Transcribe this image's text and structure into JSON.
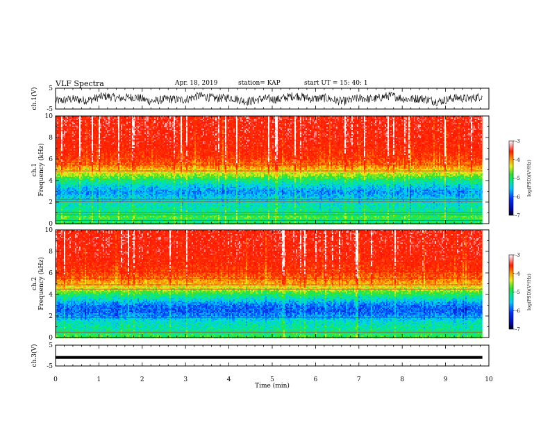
{
  "header": {
    "title": "VLF Spectra",
    "date": "Apr. 18, 2019",
    "station": "station= KAP",
    "start": "start  UT =  15: 40: 1"
  },
  "chart_data": [
    {
      "type": "line",
      "ylabel": "ch.1(V)",
      "ylim": [
        -5,
        5
      ],
      "yticks": [
        "-5",
        "5"
      ],
      "xlim": [
        0,
        10
      ],
      "signal": "dense noisy waveform, amplitude about ±3 V around 0"
    },
    {
      "type": "heatmap",
      "ylabel": "Frequency (kHz)",
      "channel_label": "ch.1",
      "xlim": [
        0,
        10
      ],
      "ylim": [
        0,
        10
      ],
      "yticks": [
        "0",
        "2",
        "4",
        "6",
        "8",
        "10"
      ],
      "data_end_min": 9.85,
      "colorbar": {
        "label": "log(PSD)(V²/Hz)",
        "ticks": [
          "-3",
          "-4",
          "-5",
          "-6",
          "-7"
        ],
        "range": [
          -7,
          -3
        ]
      },
      "profile": [
        {
          "f": 0.0,
          "v": -5.1
        },
        {
          "f": 0.3,
          "v": -5.3
        },
        {
          "f": 0.6,
          "v": -5.0
        },
        {
          "f": 1.0,
          "v": -5.3
        },
        {
          "f": 1.5,
          "v": -5.4
        },
        {
          "f": 2.0,
          "v": -5.5
        },
        {
          "f": 2.5,
          "v": -5.7
        },
        {
          "f": 3.0,
          "v": -5.9
        },
        {
          "f": 3.5,
          "v": -5.6
        },
        {
          "f": 4.0,
          "v": -5.3
        },
        {
          "f": 4.5,
          "v": -4.8
        },
        {
          "f": 5.0,
          "v": -4.4
        },
        {
          "f": 5.5,
          "v": -4.0
        },
        {
          "f": 6.0,
          "v": -3.8
        },
        {
          "f": 7.0,
          "v": -3.6
        },
        {
          "f": 8.0,
          "v": -3.5
        },
        {
          "f": 10.0,
          "v": -3.45
        }
      ],
      "lines_khz": [
        0.3,
        0.8,
        1.05,
        2.05,
        2.25,
        4.9,
        5.45
      ]
    },
    {
      "type": "heatmap",
      "ylabel": "Frequency (kHz)",
      "channel_label": "ch.2",
      "xlim": [
        0,
        10
      ],
      "ylim": [
        0,
        10
      ],
      "yticks": [
        "0",
        "2",
        "4",
        "6",
        "8",
        "10"
      ],
      "data_end_min": 9.85,
      "colorbar": {
        "label": "log(PSD)(V²/Hz)",
        "ticks": [
          "-3",
          "-4",
          "-5",
          "-6",
          "-7"
        ],
        "range": [
          -7,
          -3
        ]
      },
      "profile": [
        {
          "f": 0.0,
          "v": -5.0
        },
        {
          "f": 0.5,
          "v": -5.3
        },
        {
          "f": 1.0,
          "v": -5.4
        },
        {
          "f": 1.5,
          "v": -5.5
        },
        {
          "f": 2.0,
          "v": -5.9
        },
        {
          "f": 2.5,
          "v": -6.1
        },
        {
          "f": 3.0,
          "v": -6.0
        },
        {
          "f": 3.5,
          "v": -5.6
        },
        {
          "f": 4.0,
          "v": -5.2
        },
        {
          "f": 4.5,
          "v": -4.7
        },
        {
          "f": 5.0,
          "v": -4.3
        },
        {
          "f": 5.5,
          "v": -4.0
        },
        {
          "f": 6.0,
          "v": -3.8
        },
        {
          "f": 7.0,
          "v": -3.6
        },
        {
          "f": 8.0,
          "v": -3.5
        },
        {
          "f": 10.0,
          "v": -3.45
        }
      ],
      "lines_khz": [
        0.5,
        1.85,
        4.5,
        4.9,
        5.45,
        6.1
      ]
    },
    {
      "type": "line",
      "ylabel": "ch.3(V)",
      "ylim": [
        -5,
        5
      ],
      "yticks": [
        "-5",
        "5"
      ],
      "xlim": [
        0,
        10
      ],
      "signal": "thick flat line near -1 V"
    }
  ],
  "xaxis": {
    "label": "Time (min)",
    "ticks": [
      "0",
      "1",
      "2",
      "3",
      "4",
      "5",
      "6",
      "7",
      "8",
      "9",
      "10"
    ]
  }
}
